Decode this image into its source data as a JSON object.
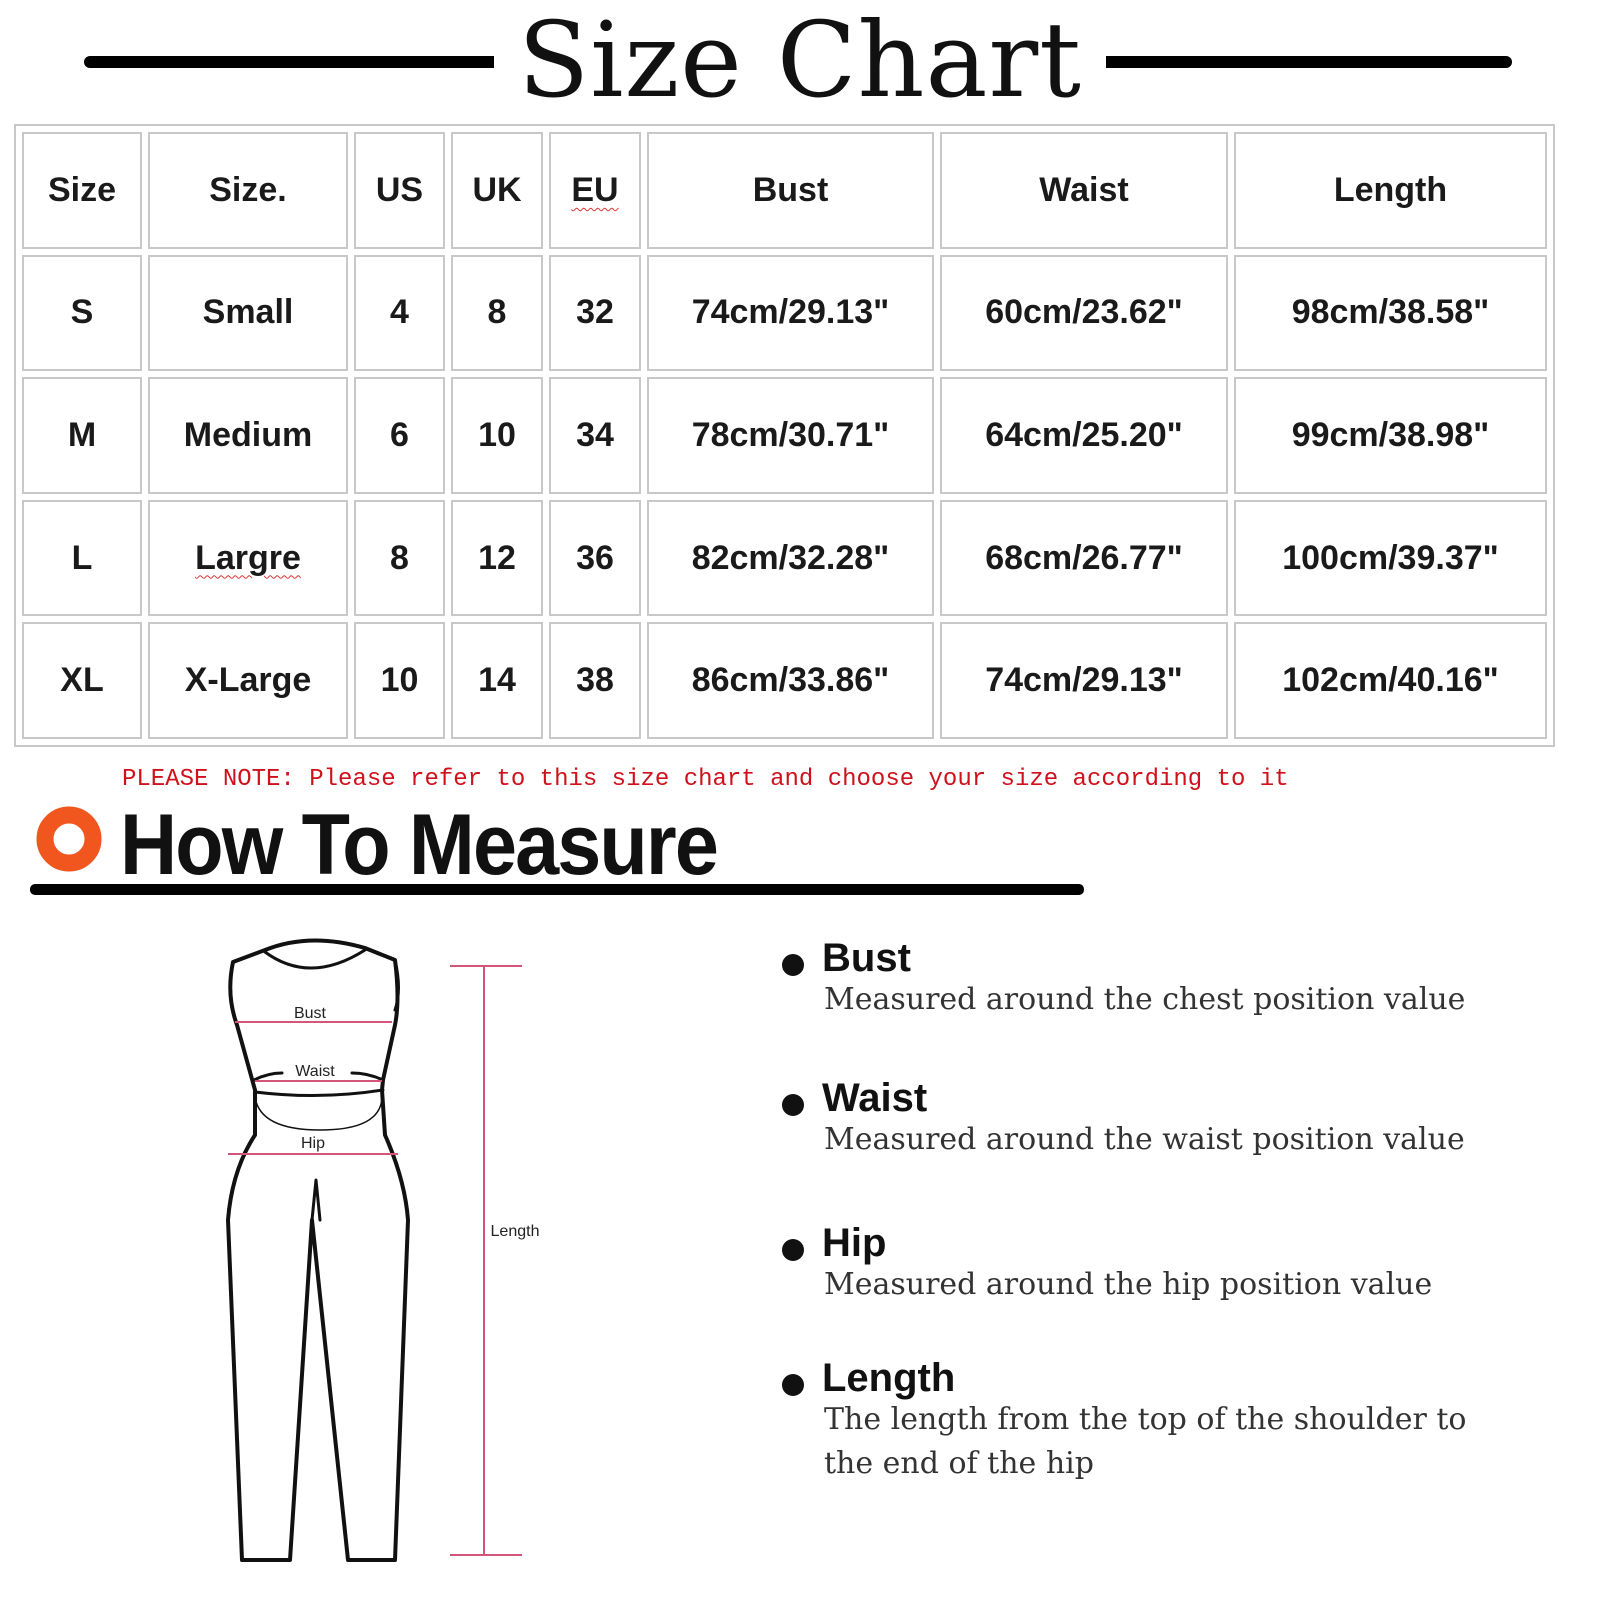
{
  "title": "Size Chart",
  "table": {
    "headers": [
      "Size",
      "Size.",
      "US",
      "UK",
      "EU",
      "Bust",
      "Waist",
      "Length"
    ],
    "rows": [
      [
        "S",
        "Small",
        "4",
        "8",
        "32",
        "74cm/29.13\"",
        "60cm/23.62\"",
        "98cm/38.58\""
      ],
      [
        "M",
        "Medium",
        "6",
        "10",
        "34",
        "78cm/30.71\"",
        "64cm/25.20\"",
        "99cm/38.98\""
      ],
      [
        "L",
        "Largre",
        "8",
        "12",
        "36",
        "82cm/32.28\"",
        "68cm/26.77\"",
        "100cm/39.37\""
      ],
      [
        "XL",
        "X-Large",
        "10",
        "14",
        "38",
        "86cm/33.86\"",
        "74cm/29.13\"",
        "102cm/40.16\""
      ]
    ]
  },
  "note": "PLEASE NOTE: Please refer to this size chart and choose your size according to it",
  "how_to_measure": {
    "heading": "How To Measure",
    "accent_color": "#f0561e",
    "figure_labels": {
      "bust": "Bust",
      "waist": "Waist",
      "hip": "Hip",
      "length": "Length"
    },
    "items": [
      {
        "title": "Bust",
        "desc": [
          "Measured around the chest position value"
        ]
      },
      {
        "title": "Waist",
        "desc": [
          "Measured around the waist position value"
        ]
      },
      {
        "title": "Hip",
        "desc": [
          "Measured around the  hip position value"
        ]
      },
      {
        "title": "Length",
        "desc": [
          "The length from the top of the shoulder to",
          "the end of the hip"
        ]
      }
    ]
  }
}
